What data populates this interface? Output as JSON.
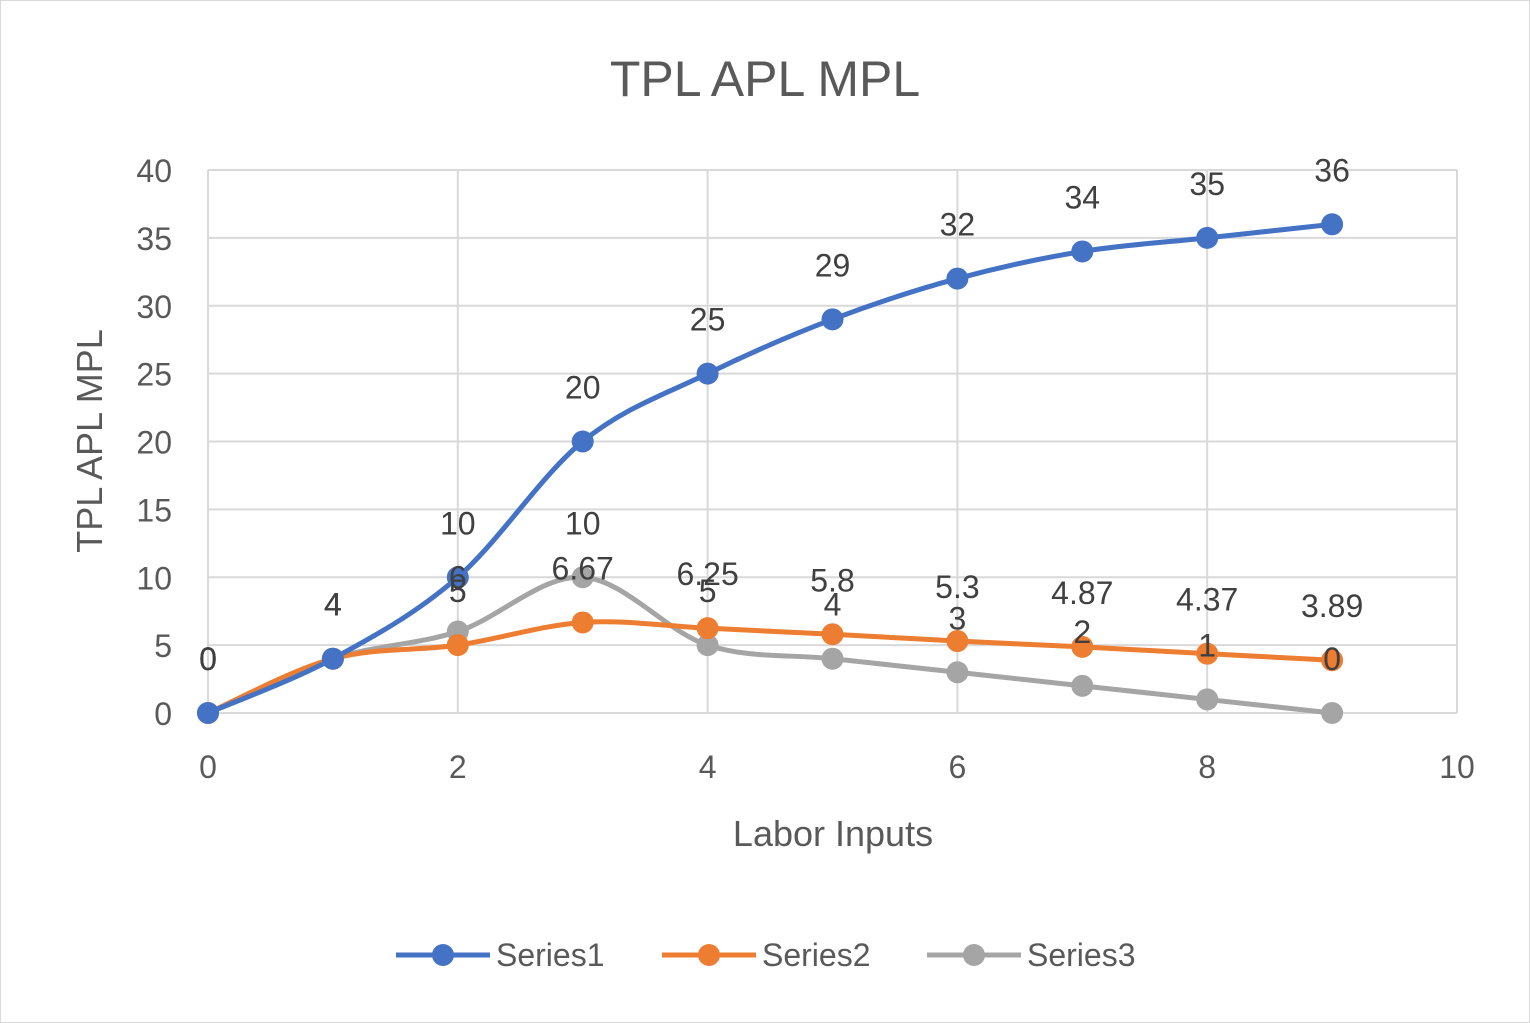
{
  "chart_data": {
    "type": "line",
    "smooth": true,
    "title": "TPL APL MPL",
    "xlabel": "Labor Inputs",
    "ylabel": "TPL APL MPL",
    "xlim": [
      0,
      10
    ],
    "ylim": [
      0,
      40
    ],
    "xticks": [
      0,
      2,
      4,
      6,
      8,
      10
    ],
    "yticks": [
      0,
      5,
      10,
      15,
      20,
      25,
      30,
      35,
      40
    ],
    "grid": true,
    "legend": "bottom",
    "x": [
      0,
      1,
      2,
      3,
      4,
      5,
      6,
      7,
      8,
      9
    ],
    "series": [
      {
        "name": "Series1",
        "color": "#4472C4",
        "values": [
          0,
          4,
          10,
          20,
          25,
          29,
          32,
          34,
          35,
          36
        ],
        "labels": [
          "0",
          "4",
          "10",
          "20",
          "25",
          "29",
          "32",
          "34",
          "35",
          "36"
        ]
      },
      {
        "name": "Series2",
        "color": "#ED7D31",
        "values": [
          0,
          4,
          5,
          6.67,
          6.25,
          5.8,
          5.3,
          4.87,
          4.37,
          3.89
        ],
        "labels": [
          "0",
          "4",
          "5",
          "6.67",
          "6.25",
          "5.8",
          "5.3",
          "4.87",
          "4.37",
          "3.89"
        ]
      },
      {
        "name": "Series3",
        "color": "#A5A5A5",
        "values": [
          0,
          4,
          6,
          10,
          5,
          4,
          3,
          2,
          1,
          0
        ],
        "labels": [
          "0",
          "4",
          "6",
          "10",
          "5",
          "4",
          "3",
          "2",
          "1",
          "0"
        ]
      }
    ]
  }
}
